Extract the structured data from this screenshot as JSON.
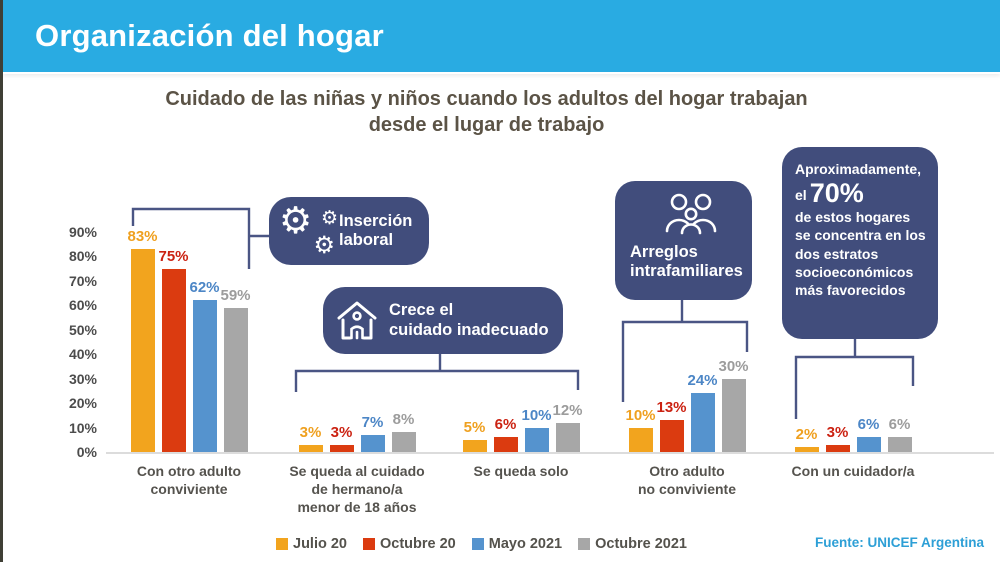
{
  "header": {
    "title": "Organización del hogar"
  },
  "subtitle": "Cuidado de las niñas y niños cuando los adultos del hogar trabajan desde el lugar de trabajo",
  "callouts": {
    "insercion": {
      "icon": "gears-icon",
      "lines": [
        "Inserción",
        "laboral"
      ]
    },
    "crece": {
      "icon": "house-care-icon",
      "lines": [
        "Crece el",
        "cuidado inadecuado"
      ]
    },
    "arreglos": {
      "icon": "family-icon",
      "lines": [
        "Arreglos",
        "intrafamiliares"
      ]
    },
    "aprox": {
      "line1": "Aproximadamente,",
      "el": "el",
      "big": "70%",
      "rest": "de estos hogares se concentra en los dos estratos socioeconómicos más favorecidos"
    }
  },
  "chart_data": {
    "type": "bar",
    "title": "Cuidado de las niñas y niños cuando los adultos del hogar trabajan desde el lugar de trabajo",
    "unit": "%",
    "ylim": [
      0,
      90
    ],
    "yticks": [
      0,
      10,
      20,
      30,
      40,
      50,
      60,
      70,
      80,
      90
    ],
    "grid": false,
    "legend_position": "bottom",
    "categories": [
      "Con otro adulto conviviente",
      "Se queda al cuidado de hermano/a menor de 18 años",
      "Se queda solo",
      "Otro adulto no conviviente",
      "Con un cuidador/a"
    ],
    "category_lines": [
      [
        "Con otro adulto",
        "conviviente"
      ],
      [
        "Se queda al cuidado",
        "de hermano/a",
        "menor de 18 años"
      ],
      [
        "Se queda solo"
      ],
      [
        "Otro adulto",
        "no conviviente"
      ],
      [
        "Con un cuidador/a"
      ]
    ],
    "series": [
      {
        "name": "Julio 20",
        "color": "#F2A41E",
        "label_color": "#EFA01F",
        "values": [
          83,
          3,
          5,
          10,
          2
        ]
      },
      {
        "name": "Octubre 20",
        "color": "#DB3B10",
        "label_color": "#CB2212",
        "values": [
          75,
          3,
          6,
          13,
          3
        ]
      },
      {
        "name": "Mayo 2021",
        "color": "#5593CE",
        "label_color": "#4C86C6",
        "values": [
          62,
          7,
          10,
          24,
          6
        ]
      },
      {
        "name": "Octubre 2021",
        "color": "#A7A7A7",
        "label_color": "#9C9C9C",
        "values": [
          59,
          8,
          12,
          30,
          6
        ]
      }
    ]
  },
  "source": "Fuente: UNICEF Argentina",
  "colors": {
    "header_bg": "#29ABE2",
    "box_navy": "#414D7C",
    "bracket": "#4A5584",
    "title_text": "#5B5346",
    "source_blue": "#2D9FD6"
  }
}
